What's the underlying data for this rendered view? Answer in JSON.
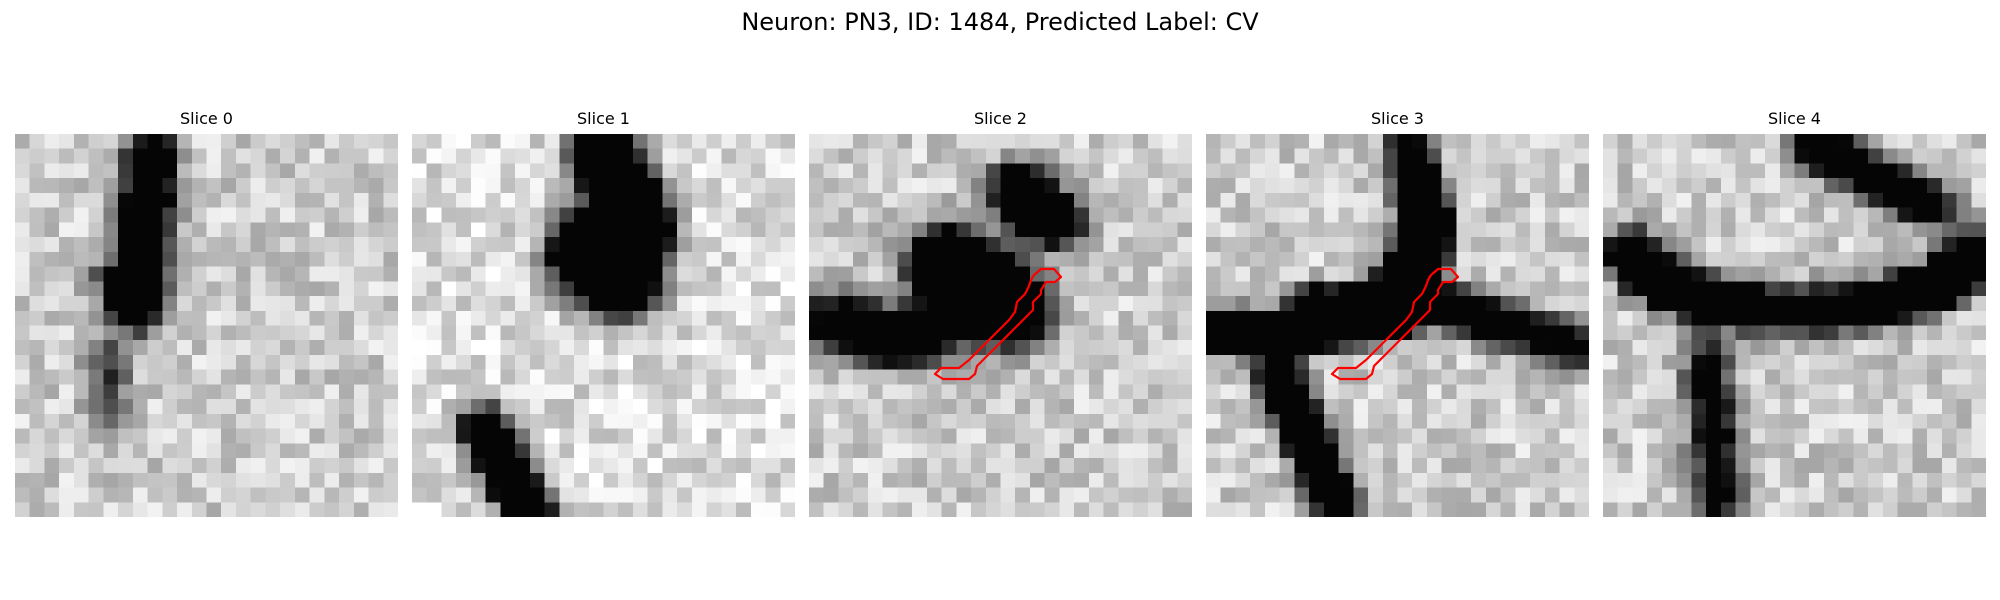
{
  "figure": {
    "title": "Neuron: PN3, ID: 1484, Predicted Label: CV"
  },
  "panels": [
    {
      "title": "Slice 0",
      "has_outline": false
    },
    {
      "title": "Slice 1",
      "has_outline": false
    },
    {
      "title": "Slice 2",
      "has_outline": true
    },
    {
      "title": "Slice 3",
      "has_outline": true
    },
    {
      "title": "Slice 4",
      "has_outline": false
    }
  ],
  "colors": {
    "outline": "#ff0000",
    "background": "#ffffff",
    "colormap": "gray"
  }
}
